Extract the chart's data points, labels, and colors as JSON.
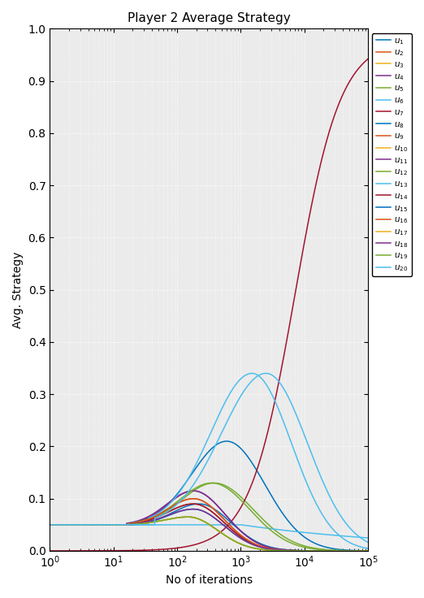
{
  "title": "Player 2 Average Strategy",
  "xlabel": "No of iterations",
  "ylabel": "Avg. Strategy",
  "ylim": [
    0,
    1
  ],
  "n_series": 20,
  "legend_labels": [
    "$u_1$",
    "$u_2$",
    "$u_3$",
    "$u_4$",
    "$u_5$",
    "$u_6$",
    "$u_7$",
    "$u_8$",
    "$u_9$",
    "$u_{10}$",
    "$u_{11}$",
    "$u_{12}$",
    "$u_{13}$",
    "$u_{14}$",
    "$u_{15}$",
    "$u_{16}$",
    "$u_{17}$",
    "$u_{18}$",
    "$u_{19}$",
    "$u_{20}$"
  ],
  "colors": [
    "#0072BD",
    "#D95319",
    "#EDB120",
    "#7E2F8E",
    "#77AC30",
    "#4DBEEE",
    "#A2142F",
    "#0072BD",
    "#D95319",
    "#EDB120",
    "#7E2F8E",
    "#77AC30",
    "#4DBEEE",
    "#A2142F",
    "#0072BD",
    "#D95319",
    "#EDB120",
    "#7E2F8E",
    "#77AC30",
    "#4DBEEE"
  ],
  "bg_color": "#EBEBEB",
  "grid_color": "#FFFFFF",
  "series_params": [
    [
      600,
      0.21,
      0.55,
      0.6,
      0.05
    ],
    [
      180,
      0.09,
      0.4,
      0.48,
      0.05
    ],
    [
      150,
      0.065,
      0.38,
      0.46,
      0.05
    ],
    [
      180,
      0.115,
      0.42,
      0.5,
      0.05
    ],
    [
      380,
      0.13,
      0.5,
      0.62,
      0.05
    ],
    [
      1,
      0.05,
      0.0,
      0.0,
      0.05
    ],
    [
      -1,
      0.98,
      0.0,
      0.0,
      0.0
    ],
    [
      220,
      0.09,
      0.4,
      0.5,
      0.05
    ],
    [
      180,
      0.1,
      0.4,
      0.48,
      0.05
    ],
    [
      150,
      0.065,
      0.38,
      0.46,
      0.05
    ],
    [
      180,
      0.115,
      0.4,
      0.5,
      0.05
    ],
    [
      350,
      0.13,
      0.5,
      0.6,
      0.05
    ],
    [
      1500,
      0.34,
      0.65,
      0.62,
      0.05
    ],
    [
      180,
      0.09,
      0.4,
      0.48,
      0.05
    ],
    [
      180,
      0.08,
      0.38,
      0.48,
      0.05
    ],
    [
      180,
      0.1,
      0.4,
      0.48,
      0.05
    ],
    [
      150,
      0.065,
      0.38,
      0.46,
      0.05
    ],
    [
      180,
      0.08,
      0.4,
      0.48,
      0.05
    ],
    [
      150,
      0.065,
      0.38,
      0.46,
      0.05
    ],
    [
      2500,
      0.34,
      0.7,
      0.65,
      0.05
    ]
  ]
}
